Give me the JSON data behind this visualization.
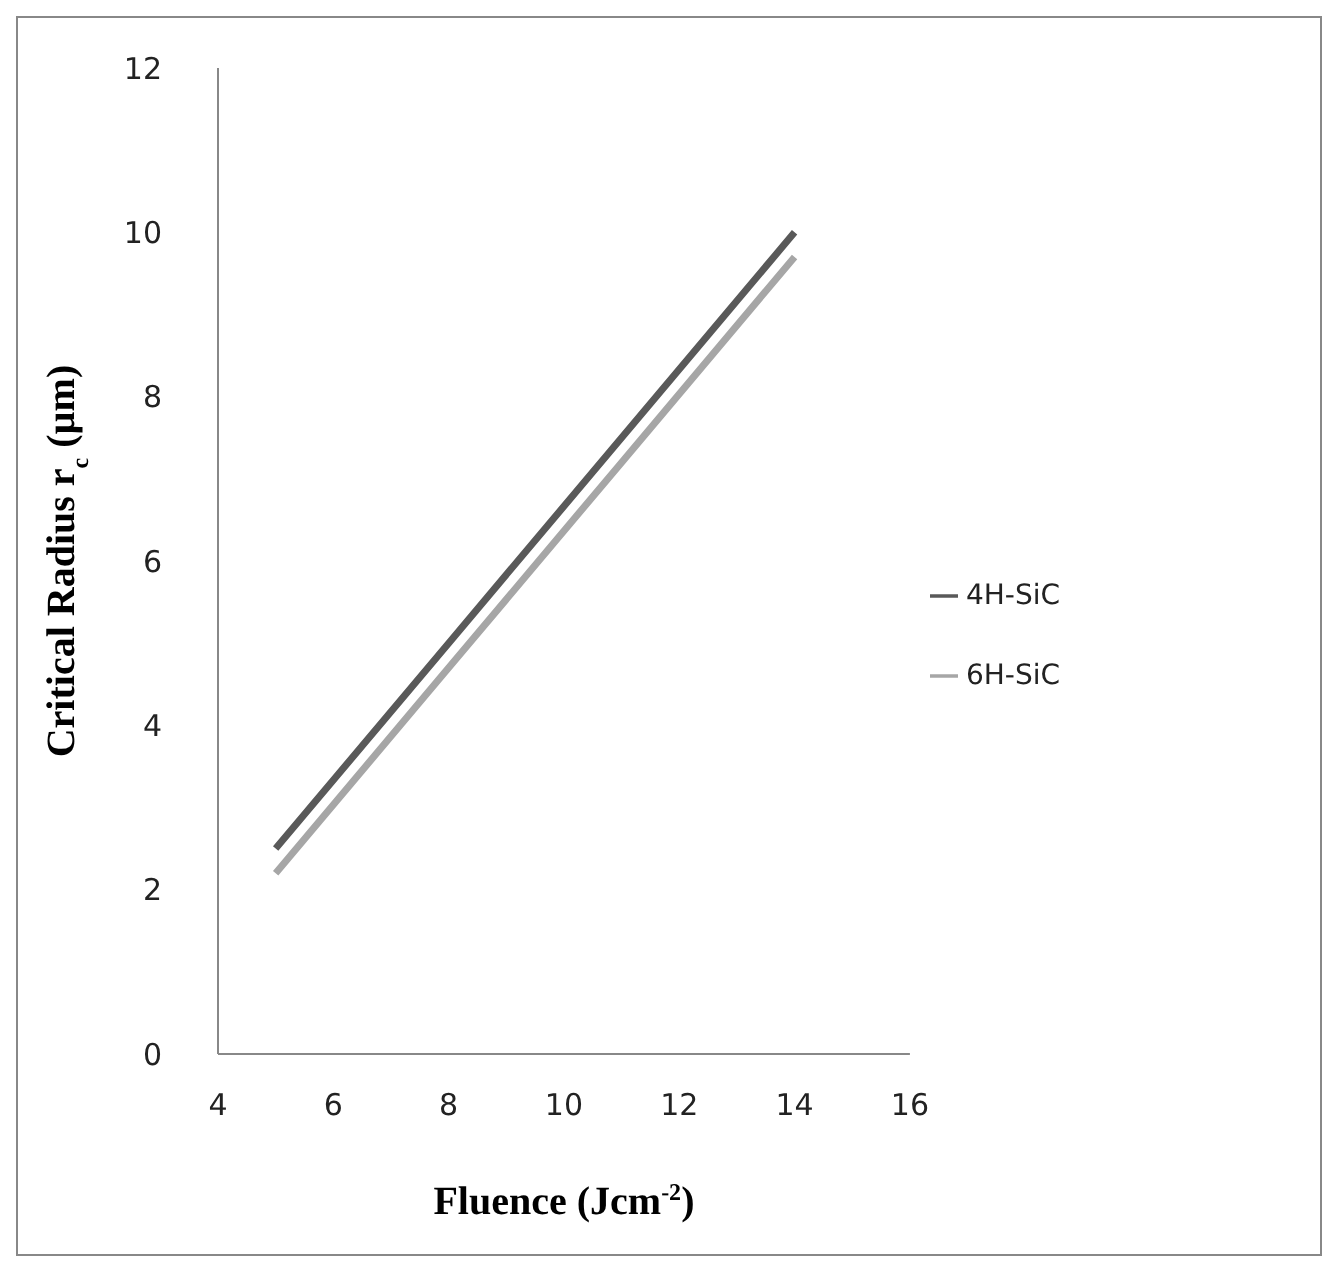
{
  "chart_data": {
    "type": "line",
    "xlabel": "Fluence (Jcm$^{-2}$)",
    "ylabel": "Critical Radius r$_{c}$ (µm)",
    "x": [
      5,
      8,
      11,
      14
    ],
    "series": [
      {
        "name": "4H-SiC",
        "color": "#595959",
        "values": [
          2.5,
          5.0,
          7.5,
          10.0
        ]
      },
      {
        "name": "6H-SiC",
        "color": "#a6a6a6",
        "values": [
          2.2,
          4.7,
          7.2,
          9.7
        ]
      }
    ],
    "xlim": [
      4,
      16
    ],
    "xticks": [
      4,
      6,
      8,
      10,
      12,
      14,
      16
    ],
    "ylim": [
      0,
      12
    ],
    "yticks": [
      0,
      2,
      4,
      6,
      8,
      10,
      12
    ],
    "grid": false,
    "legend": "right",
    "marker": "none",
    "line_style": "solid"
  }
}
